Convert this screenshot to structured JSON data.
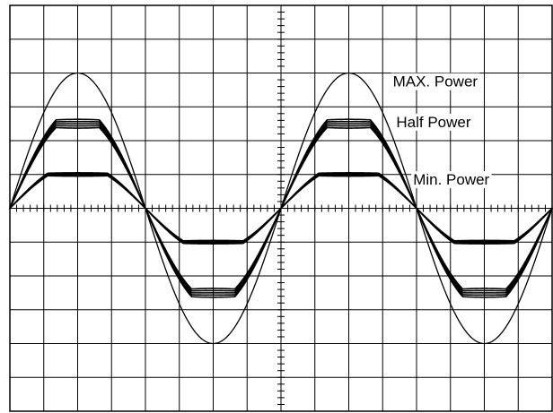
{
  "chart_data": {
    "type": "line",
    "title": "",
    "xlabel": "",
    "ylabel": "",
    "grid": true,
    "x_divisions": 16,
    "y_divisions": 12,
    "xlim": [
      0,
      16
    ],
    "ylim": [
      -6,
      6
    ],
    "period_divisions": 8,
    "series": [
      {
        "name": "MAX. Power",
        "amplitude": 4.0,
        "clip": 4.0,
        "band": 0.0
      },
      {
        "name": "Half Power",
        "amplitude": 2.85,
        "clip": 2.5,
        "band": 0.13
      },
      {
        "name": "Min. Power",
        "amplitude": 1.3,
        "clip": 1.0,
        "band": 0.05
      }
    ],
    "annotations": [
      {
        "text": "MAX. Power",
        "x": 11.3,
        "y": 3.6
      },
      {
        "text": "Half Power",
        "x": 11.4,
        "y": 2.4
      },
      {
        "text": "Min. Power",
        "x": 11.9,
        "y": 0.7
      }
    ]
  }
}
